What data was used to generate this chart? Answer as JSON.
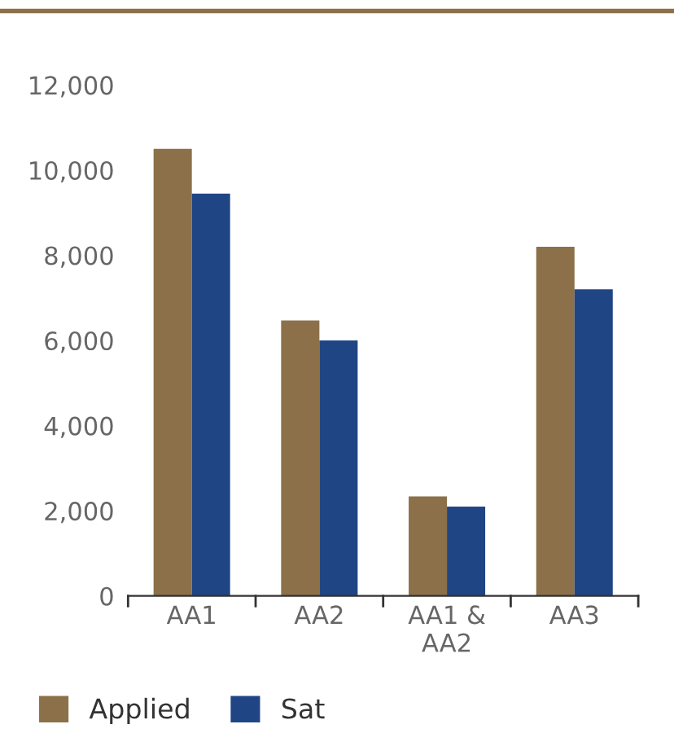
{
  "chart_data": {
    "type": "bar",
    "categories": [
      "AA1",
      "AA2",
      "AA1 &\nAA2",
      "AA3"
    ],
    "series": [
      {
        "name": "Applied",
        "color": "#8b7049",
        "values": [
          10500,
          6470,
          2340,
          8200
        ]
      },
      {
        "name": "Sat",
        "color": "#1f4585",
        "values": [
          9450,
          6000,
          2100,
          7200
        ]
      }
    ],
    "ylim": [
      0,
      12000
    ],
    "yticks": [
      {
        "value": 0,
        "label": "0"
      },
      {
        "value": 2000,
        "label": "2,000"
      },
      {
        "value": 4000,
        "label": "4,000"
      },
      {
        "value": 6000,
        "label": "6,000"
      },
      {
        "value": 8000,
        "label": "8,000"
      },
      {
        "value": 10000,
        "label": "10,000"
      },
      {
        "value": 12000,
        "label": "12,000"
      }
    ],
    "grid": false,
    "legend": "bottom left"
  }
}
